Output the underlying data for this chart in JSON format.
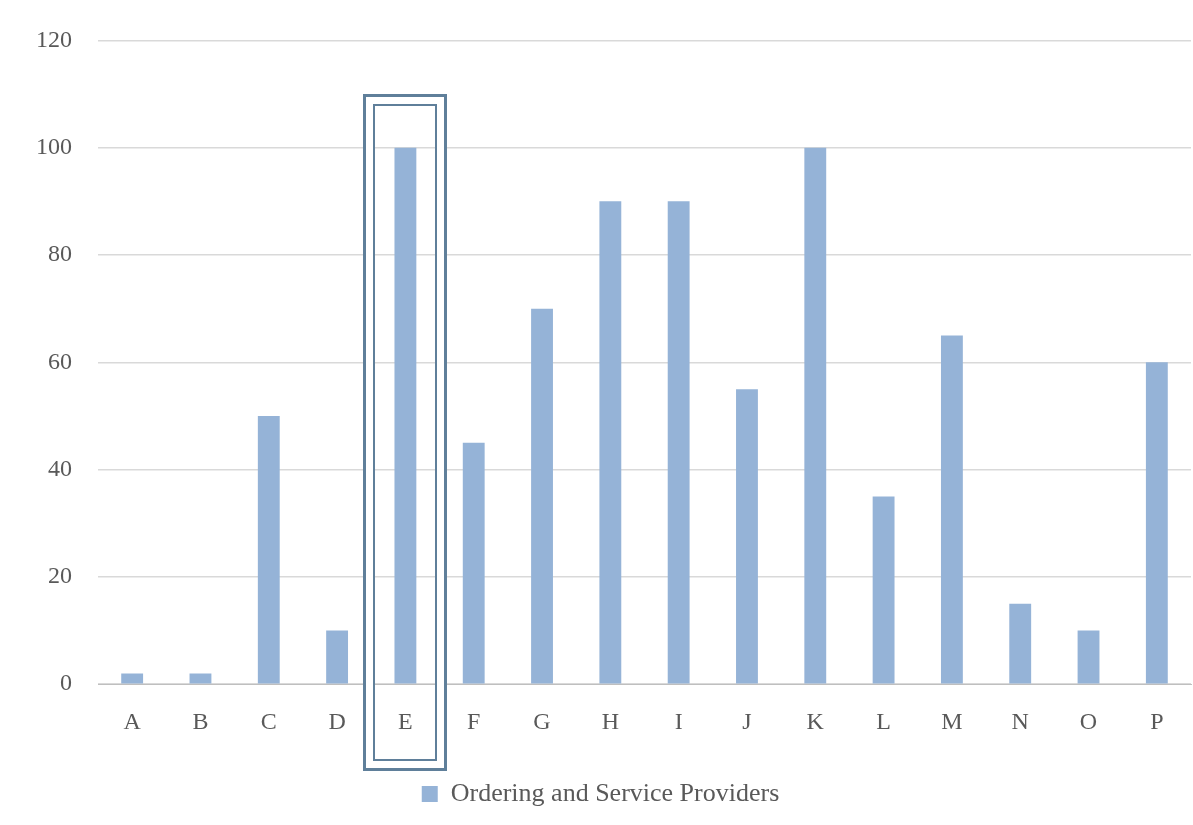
{
  "chart_data": {
    "type": "bar",
    "categories": [
      "A",
      "B",
      "C",
      "D",
      "E",
      "F",
      "G",
      "H",
      "I",
      "J",
      "K",
      "L",
      "M",
      "N",
      "O",
      "P"
    ],
    "series": [
      {
        "name": "Ordering and Service Providers",
        "color": "#95b3d7",
        "values": [
          2,
          2,
          50,
          10,
          100,
          45,
          70,
          90,
          90,
          55,
          100,
          35,
          65,
          15,
          10,
          60
        ]
      }
    ],
    "ylim": [
      0,
      120
    ],
    "yticks": [
      0,
      20,
      40,
      60,
      80,
      100,
      120
    ],
    "grid": "y",
    "legend": "bottom"
  }
}
